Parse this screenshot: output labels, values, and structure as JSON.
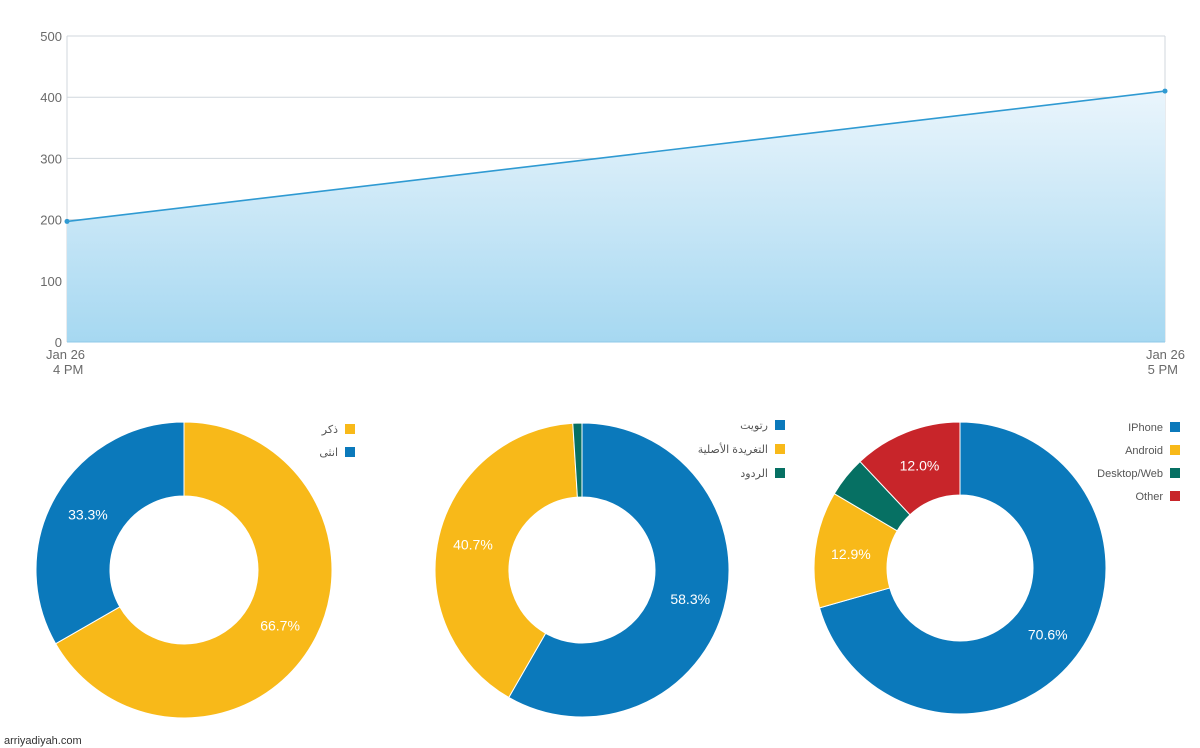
{
  "colors": {
    "blue": "#0b79bb",
    "yellow": "#f8b919",
    "teal": "#067063",
    "red": "#c8252a",
    "line": "#2f9ad2",
    "area_top": "#eaf5fc",
    "area_bottom": "#a6d8f1",
    "grid": "#d0d7dd"
  },
  "chart_data": [
    {
      "type": "area",
      "ylim": [
        0,
        500
      ],
      "yticks": [
        "0",
        "100",
        "200",
        "300",
        "400",
        "500"
      ],
      "x_ticks": [
        {
          "line1": "Jan 26",
          "line2": "4 PM"
        },
        {
          "line1": "Jan 26",
          "line2": "5 PM"
        }
      ],
      "series": [
        {
          "values": [
            197,
            410
          ]
        }
      ]
    },
    {
      "type": "pie",
      "legend": [
        "ذكر",
        "انثى"
      ],
      "slices": [
        {
          "value": 66.7,
          "label": "66.7%",
          "color": "yellow"
        },
        {
          "value": 33.3,
          "label": "33.3%",
          "color": "blue"
        }
      ]
    },
    {
      "type": "pie",
      "legend": [
        "رتويت",
        "التغريدة الأصلية",
        "الردود"
      ],
      "slices": [
        {
          "value": 58.3,
          "label": "58.3%",
          "color": "blue"
        },
        {
          "value": 40.7,
          "label": "40.7%",
          "color": "yellow"
        },
        {
          "value": 1.0,
          "label": "",
          "color": "teal"
        }
      ]
    },
    {
      "type": "pie",
      "legend": [
        "IPhone",
        "Android",
        "Desktop/Web",
        "Other"
      ],
      "slices": [
        {
          "value": 70.6,
          "label": "70.6%",
          "color": "blue"
        },
        {
          "value": 12.9,
          "label": "12.9%",
          "color": "yellow"
        },
        {
          "value": 4.5,
          "label": "",
          "color": "teal"
        },
        {
          "value": 12.0,
          "label": "12.0%",
          "color": "red"
        }
      ]
    }
  ],
  "watermark": "arriyadiyah.com"
}
